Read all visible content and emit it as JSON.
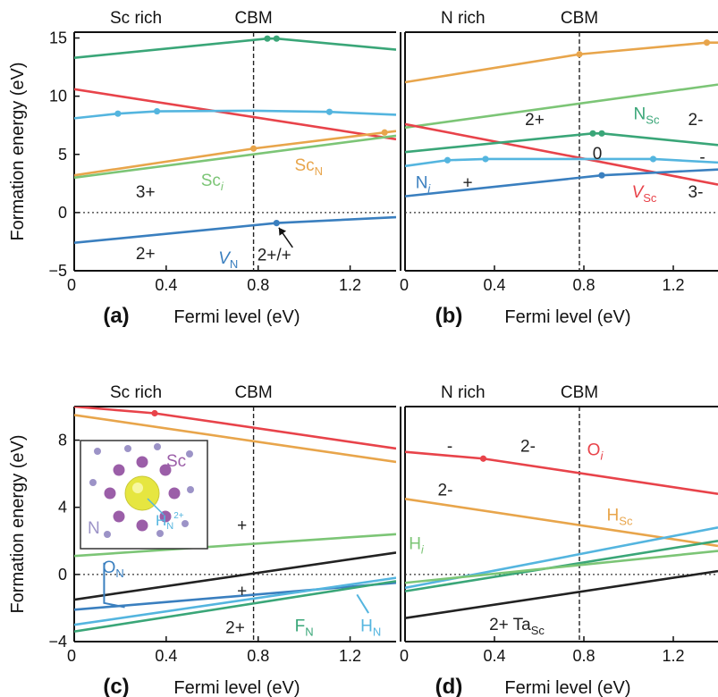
{
  "colors": {
    "green": "#7cc576",
    "orange": "#e8a54b",
    "red": "#e8434a",
    "cyan": "#54b5df",
    "blue": "#3a7fbf",
    "teal": "#3aa678",
    "black": "#222222",
    "inset_purple": "#9b5ea8",
    "inset_gray": "#9c93c7",
    "inset_yellow": "#e6e640"
  },
  "chart_data": [
    {
      "type": "line",
      "panel": "(a)",
      "title": "Sc rich",
      "marker_label": "CBM",
      "cbm": 0.78,
      "xlabel": "Fermi level (eV)",
      "ylabel": "Formation energy (eV)",
      "xlim": [
        0,
        1.4
      ],
      "ylim": [
        -5,
        15.5
      ],
      "xticks": [
        {
          "v": 0,
          "label": "0"
        },
        {
          "v": 0.4,
          "label": "0.4"
        },
        {
          "v": 0.8,
          "label": "0.8"
        },
        {
          "v": 1.2,
          "label": "1.2"
        }
      ],
      "yticks": [
        {
          "v": -5,
          "label": "−5"
        },
        {
          "v": 0,
          "label": "0"
        },
        {
          "v": 5,
          "label": "5"
        },
        {
          "v": 10,
          "label": "10"
        },
        {
          "v": 15,
          "label": "15"
        }
      ],
      "series": [
        {
          "color": "teal",
          "x": [
            0,
            0.84,
            0.88,
            1.4
          ],
          "y": [
            13.3,
            14.95,
            14.95,
            14.0
          ],
          "markers": [
            0.84,
            0.88
          ]
        },
        {
          "color": "red",
          "x": [
            0,
            1.4
          ],
          "y": [
            10.6,
            6.3
          ],
          "markers": []
        },
        {
          "color": "cyan",
          "x": [
            0,
            0.19,
            0.36,
            0.78,
            1.11,
            1.4
          ],
          "y": [
            8.1,
            8.5,
            8.7,
            8.75,
            8.65,
            8.4
          ],
          "markers": [
            0.19,
            0.36,
            1.11
          ]
        },
        {
          "color": "orange",
          "x": [
            0,
            0.78,
            1.4
          ],
          "y": [
            3.2,
            5.5,
            7.0
          ],
          "markers": [
            0.78,
            1.35
          ]
        },
        {
          "color": "green",
          "x": [
            0,
            1.4
          ],
          "y": [
            3.0,
            6.6
          ],
          "markers": []
        },
        {
          "color": "blue",
          "x": [
            0,
            0.88,
            1.4
          ],
          "y": [
            -2.6,
            -0.9,
            -0.4
          ],
          "markers": [
            0.88
          ]
        }
      ],
      "annotations": [
        {
          "parts": [
            {
              "t": "Sc"
            },
            {
              "t": "i",
              "italic": true,
              "sub": true
            }
          ],
          "color": "green",
          "x": 0.6,
          "y": 2.3
        },
        {
          "parts": [
            {
              "t": "Sc"
            },
            {
              "t": "N",
              "sub": true
            }
          ],
          "color": "orange",
          "x": 1.02,
          "y": 3.6
        },
        {
          "parts": [
            {
              "t": "3+"
            }
          ],
          "color": "black",
          "x": 0.31,
          "y": 1.3
        },
        {
          "parts": [
            {
              "t": "2+"
            }
          ],
          "color": "black",
          "x": 0.31,
          "y": -4.0
        },
        {
          "parts": [
            {
              "t": "V",
              "italic": true
            },
            {
              "t": "N",
              "sub": true
            }
          ],
          "color": "blue",
          "x": 0.67,
          "y": -4.4
        },
        {
          "parts": [
            {
              "t": "2+/+"
            }
          ],
          "color": "black",
          "x": 0.87,
          "y": -4.1
        }
      ],
      "arrows": [
        {
          "from": [
            0.95,
            -3.0
          ],
          "to": [
            0.89,
            -1.3
          ]
        }
      ]
    },
    {
      "type": "line",
      "panel": "(b)",
      "title": "N rich",
      "marker_label": "CBM",
      "cbm": 0.78,
      "xlabel": "Fermi level (eV)",
      "ylabel": "",
      "xlim": [
        0,
        1.4
      ],
      "ylim": [
        -5,
        15.5
      ],
      "xticks": [
        {
          "v": 0,
          "label": "0"
        },
        {
          "v": 0.4,
          "label": "0.4"
        },
        {
          "v": 0.8,
          "label": "0.8"
        },
        {
          "v": 1.2,
          "label": "1.2"
        }
      ],
      "yticks": [],
      "series": [
        {
          "color": "orange",
          "x": [
            0,
            0.78,
            1.35,
            1.4
          ],
          "y": [
            11.2,
            13.6,
            14.6,
            14.6
          ],
          "markers": [
            0.78,
            1.35
          ]
        },
        {
          "color": "green",
          "x": [
            0,
            1.4
          ],
          "y": [
            7.3,
            11.0
          ],
          "markers": []
        },
        {
          "color": "red",
          "x": [
            0,
            1.4
          ],
          "y": [
            7.6,
            2.4
          ],
          "markers": []
        },
        {
          "color": "teal",
          "x": [
            0,
            0.84,
            0.88,
            1.4
          ],
          "y": [
            5.2,
            6.8,
            6.8,
            5.8
          ],
          "markers": [
            0.84,
            0.88
          ]
        },
        {
          "color": "cyan",
          "x": [
            0,
            0.19,
            0.36,
            1.11,
            1.4
          ],
          "y": [
            4.0,
            4.5,
            4.6,
            4.6,
            4.3
          ],
          "markers": [
            0.19,
            0.36,
            1.11
          ]
        },
        {
          "color": "blue",
          "x": [
            0,
            0.88,
            1.4
          ],
          "y": [
            1.4,
            3.2,
            3.7
          ],
          "markers": [
            0.88
          ]
        }
      ],
      "annotations": [
        {
          "parts": [
            {
              "t": "2+"
            }
          ],
          "color": "black",
          "x": 0.58,
          "y": 7.5
        },
        {
          "parts": [
            {
              "t": "N"
            },
            {
              "t": "Sc",
              "sub": true
            }
          ],
          "color": "teal",
          "x": 1.08,
          "y": 8.0
        },
        {
          "parts": [
            {
              "t": "2-"
            }
          ],
          "color": "black",
          "x": 1.3,
          "y": 7.5
        },
        {
          "parts": [
            {
              "t": "0"
            }
          ],
          "color": "black",
          "x": 0.86,
          "y": 4.6
        },
        {
          "parts": [
            {
              "t": "-"
            }
          ],
          "color": "black",
          "x": 1.33,
          "y": 4.3
        },
        {
          "parts": [
            {
              "t": "N"
            },
            {
              "t": "i",
              "italic": true,
              "sub": true
            }
          ],
          "color": "blue",
          "x": 0.08,
          "y": 2.1
        },
        {
          "parts": [
            {
              "t": "+"
            }
          ],
          "color": "black",
          "x": 0.28,
          "y": 2.1
        },
        {
          "parts": [
            {
              "t": "V",
              "italic": true
            },
            {
              "t": "Sc",
              "sub": true
            }
          ],
          "color": "red",
          "x": 1.07,
          "y": 1.3
        },
        {
          "parts": [
            {
              "t": "3-"
            }
          ],
          "color": "black",
          "x": 1.3,
          "y": 1.3
        }
      ],
      "arrows": []
    },
    {
      "type": "line",
      "panel": "(c)",
      "title": "Sc rich",
      "marker_label": "CBM",
      "cbm": 0.78,
      "xlabel": "Fermi level (eV)",
      "ylabel": "Formation energy (eV)",
      "xlim": [
        0,
        1.4
      ],
      "ylim": [
        -4,
        10
      ],
      "xticks": [
        {
          "v": 0,
          "label": "0"
        },
        {
          "v": 0.4,
          "label": "0.4"
        },
        {
          "v": 0.8,
          "label": "0.8"
        },
        {
          "v": 1.2,
          "label": "1.2"
        }
      ],
      "yticks": [
        {
          "v": -4,
          "label": "−4"
        },
        {
          "v": 0,
          "label": "0"
        },
        {
          "v": 4,
          "label": "4"
        },
        {
          "v": 8,
          "label": "8"
        }
      ],
      "series": [
        {
          "color": "red",
          "x": [
            0,
            0.35,
            1.4
          ],
          "y": [
            10.0,
            9.6,
            7.5
          ],
          "markers": [
            0.35
          ]
        },
        {
          "color": "orange",
          "x": [
            0,
            1.4
          ],
          "y": [
            9.5,
            6.7
          ],
          "markers": []
        },
        {
          "color": "green",
          "x": [
            0,
            1.4
          ],
          "y": [
            1.1,
            2.4
          ],
          "markers": []
        },
        {
          "color": "black",
          "x": [
            0,
            1.4
          ],
          "y": [
            -1.5,
            1.3
          ],
          "markers": []
        },
        {
          "color": "blue",
          "x": [
            0,
            1.4
          ],
          "y": [
            -2.1,
            -0.5
          ],
          "markers": []
        },
        {
          "color": "cyan",
          "x": [
            0,
            1.4
          ],
          "y": [
            -3.0,
            -0.2
          ],
          "markers": []
        },
        {
          "color": "teal",
          "x": [
            0,
            1.4
          ],
          "y": [
            -3.4,
            -0.4
          ],
          "markers": []
        }
      ],
      "annotations": [
        {
          "parts": [
            {
              "t": "+"
            }
          ],
          "color": "black",
          "x": 0.73,
          "y": 2.6
        },
        {
          "parts": [
            {
              "t": "O"
            },
            {
              "t": "N",
              "sub": true
            }
          ],
          "color": "blue",
          "x": 0.17,
          "y": 0.1
        },
        {
          "parts": [
            {
              "t": "+"
            }
          ],
          "color": "black",
          "x": 0.73,
          "y": -1.3
        },
        {
          "parts": [
            {
              "t": "2+"
            }
          ],
          "color": "black",
          "x": 0.7,
          "y": -3.5
        },
        {
          "parts": [
            {
              "t": "F"
            },
            {
              "t": "N",
              "sub": true
            }
          ],
          "color": "teal",
          "x": 1.0,
          "y": -3.4
        },
        {
          "parts": [
            {
              "t": "H"
            },
            {
              "t": "N",
              "sub": true
            }
          ],
          "color": "cyan",
          "x": 1.29,
          "y": -3.4
        }
      ],
      "arrows": [],
      "leaders": [
        {
          "color": "blue",
          "pts": [
            [
              0.13,
              0.7
            ],
            [
              0.13,
              -1.7
            ],
            [
              0.22,
              -1.95
            ]
          ]
        },
        {
          "color": "cyan",
          "pts": [
            [
              1.28,
              -2.3
            ],
            [
              1.23,
              -1.2
            ]
          ]
        }
      ],
      "inset": {
        "sc_label": "Sc",
        "n_label": "N",
        "h_label": "H",
        "h_sub": "N",
        "h_sup": "2+"
      }
    },
    {
      "type": "line",
      "panel": "(d)",
      "title": "N rich",
      "marker_label": "CBM",
      "cbm": 0.78,
      "xlabel": "Fermi level (eV)",
      "ylabel": "",
      "xlim": [
        0,
        1.4
      ],
      "ylim": [
        -4,
        10
      ],
      "xticks": [
        {
          "v": 0,
          "label": "0"
        },
        {
          "v": 0.4,
          "label": "0.4"
        },
        {
          "v": 0.8,
          "label": "0.8"
        },
        {
          "v": 1.2,
          "label": "1.2"
        }
      ],
      "yticks": [],
      "series": [
        {
          "color": "red",
          "x": [
            0,
            0.35,
            1.4
          ],
          "y": [
            7.3,
            6.9,
            4.8
          ],
          "markers": [
            0.35
          ]
        },
        {
          "color": "orange",
          "x": [
            0,
            1.4
          ],
          "y": [
            4.5,
            1.7
          ],
          "markers": []
        },
        {
          "color": "cyan",
          "x": [
            0,
            1.4
          ],
          "y": [
            -0.8,
            2.8
          ],
          "markers": []
        },
        {
          "color": "teal",
          "x": [
            0,
            1.4
          ],
          "y": [
            -1.0,
            2.0
          ],
          "markers": []
        },
        {
          "color": "green",
          "x": [
            0,
            1.4
          ],
          "y": [
            -0.5,
            1.4
          ],
          "markers": []
        },
        {
          "color": "black",
          "x": [
            0,
            1.4
          ],
          "y": [
            -2.6,
            0.2
          ],
          "markers": []
        }
      ],
      "annotations": [
        {
          "parts": [
            {
              "t": "-"
            }
          ],
          "color": "black",
          "x": 0.2,
          "y": 7.3
        },
        {
          "parts": [
            {
              "t": "2-"
            }
          ],
          "color": "black",
          "x": 0.55,
          "y": 7.3
        },
        {
          "parts": [
            {
              "t": "O"
            },
            {
              "t": "i",
              "italic": true,
              "sub": true
            }
          ],
          "color": "red",
          "x": 0.85,
          "y": 7.1
        },
        {
          "parts": [
            {
              "t": "2-"
            }
          ],
          "color": "black",
          "x": 0.18,
          "y": 4.7
        },
        {
          "parts": [
            {
              "t": "H"
            },
            {
              "t": "Sc",
              "sub": true
            }
          ],
          "color": "orange",
          "x": 0.96,
          "y": 3.2
        },
        {
          "parts": [
            {
              "t": "H"
            },
            {
              "t": "i",
              "italic": true,
              "sub": true
            }
          ],
          "color": "green",
          "x": 0.05,
          "y": 1.5
        },
        {
          "parts": [
            {
              "t": "2+ Ta"
            },
            {
              "t": "Sc",
              "sub": true
            }
          ],
          "color": "black",
          "x": 0.5,
          "y": -3.3
        }
      ],
      "arrows": []
    }
  ]
}
